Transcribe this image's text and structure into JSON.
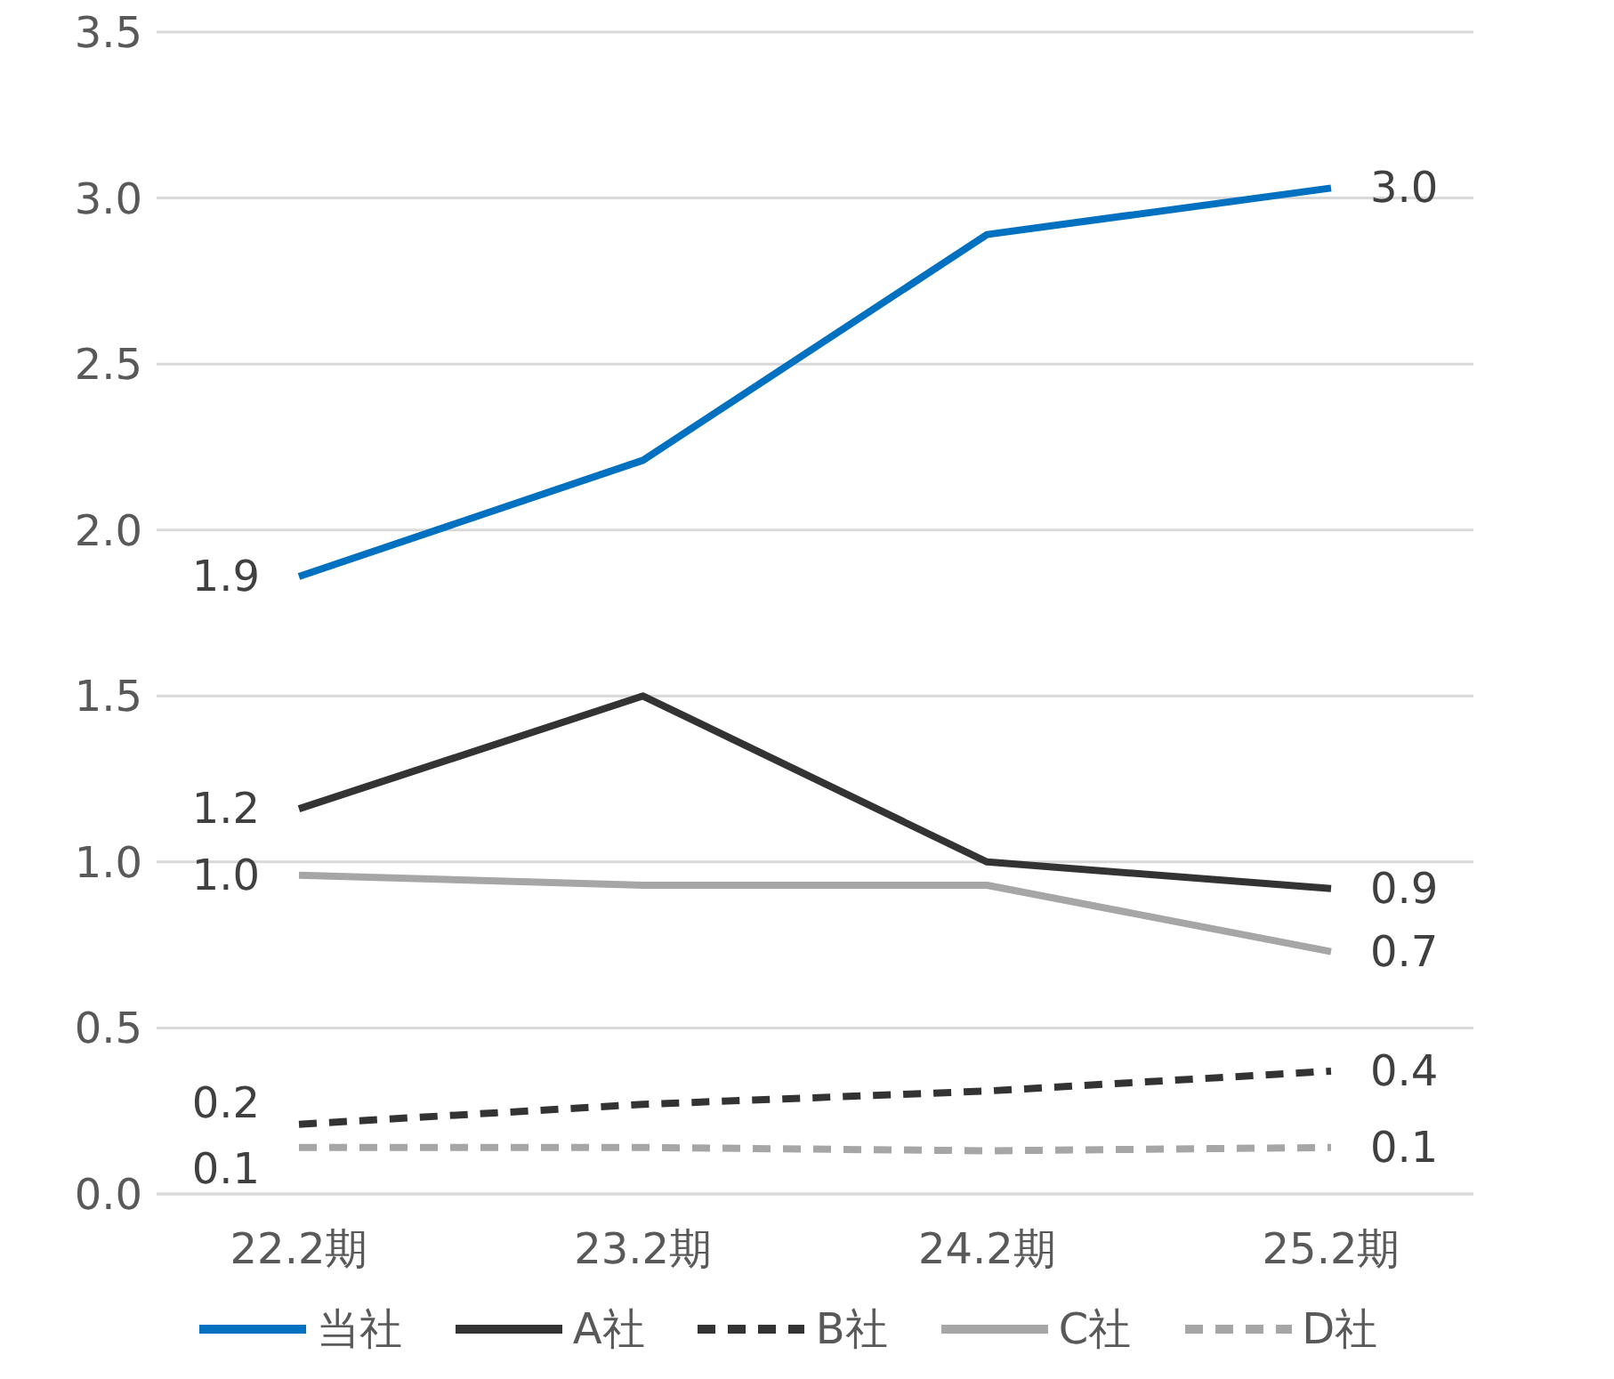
{
  "chart_data": {
    "type": "line",
    "categories": [
      "22.2期",
      "23.2期",
      "24.2期",
      "25.2期"
    ],
    "series": [
      {
        "name": "当社",
        "color": "#0070c0",
        "line_style": "solid",
        "values": [
          1.86,
          2.21,
          2.89,
          3.03
        ],
        "value_labels": [
          "1.9",
          null,
          null,
          "3.0"
        ]
      },
      {
        "name": "A社",
        "color": "#333333",
        "line_style": "solid",
        "values": [
          1.16,
          1.5,
          1.0,
          0.92
        ],
        "value_labels": [
          "1.2",
          null,
          null,
          "0.9"
        ]
      },
      {
        "name": "B社",
        "color": "#333333",
        "line_style": "dashed",
        "values": [
          0.21,
          0.27,
          0.31,
          0.37
        ],
        "value_labels": [
          "0.2",
          null,
          null,
          "0.4"
        ]
      },
      {
        "name": "C社",
        "color": "#a6a6a6",
        "line_style": "solid",
        "values": [
          0.96,
          0.93,
          0.93,
          0.73
        ],
        "value_labels": [
          "1.0",
          null,
          null,
          "0.7"
        ]
      },
      {
        "name": "D社",
        "color": "#a6a6a6",
        "line_style": "dashed",
        "values": [
          0.14,
          0.14,
          0.13,
          0.14
        ],
        "value_labels": [
          "0.1",
          null,
          null,
          "0.1"
        ]
      }
    ],
    "ylim": [
      0,
      3.5
    ],
    "yticks": [
      {
        "value": 0,
        "label": "0.0"
      },
      {
        "value": 0.5,
        "label": "0.5"
      },
      {
        "value": 1,
        "label": "1.0"
      },
      {
        "value": 1.5,
        "label": "1.5"
      },
      {
        "value": 2,
        "label": "2.0"
      },
      {
        "value": 2.5,
        "label": "2.5"
      },
      {
        "value": 3,
        "label": "3.0"
      },
      {
        "value": 3.5,
        "label": "3.5"
      }
    ],
    "grid": "y",
    "legend": "bottom",
    "marker": "none"
  }
}
